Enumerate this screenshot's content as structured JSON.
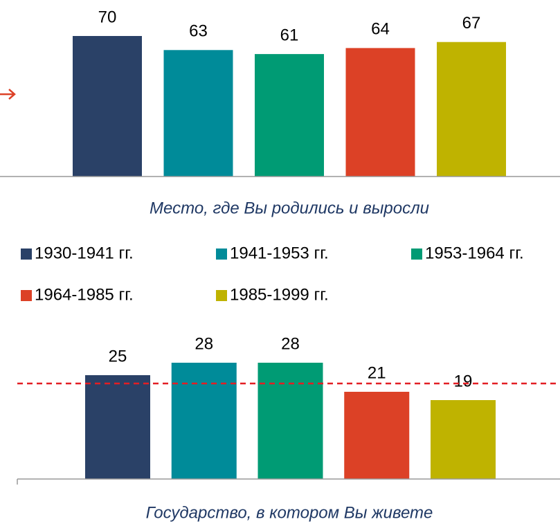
{
  "chart_data": [
    {
      "type": "bar",
      "title": "Место, где Вы родились и выросли",
      "categories": [
        "1930-1941 гг.",
        "1941-1953 гг.",
        "1953-1964 гг.",
        "1964-1985 гг.",
        "1985-1999 гг."
      ],
      "values": [
        70,
        63,
        61,
        64,
        67
      ],
      "colors": [
        "#2a4167",
        "#008b99",
        "#009b74",
        "#dc4126",
        "#bfb300"
      ],
      "ylim": [
        0,
        80
      ],
      "reference_marker": 41,
      "reference_color": "#dc4126"
    },
    {
      "type": "bar",
      "title": "Государство, в котором Вы живете",
      "categories": [
        "1930-1941 гг.",
        "1941-1953 гг.",
        "1953-1964 гг.",
        "1964-1985 гг.",
        "1985-1999 гг."
      ],
      "values": [
        25,
        28,
        28,
        21,
        19
      ],
      "colors": [
        "#2a4167",
        "#008b99",
        "#009b74",
        "#dc4126",
        "#bfb300"
      ],
      "ylim": [
        0,
        30
      ],
      "reference_line": 23,
      "reference_color": "#e31e24"
    }
  ]
}
